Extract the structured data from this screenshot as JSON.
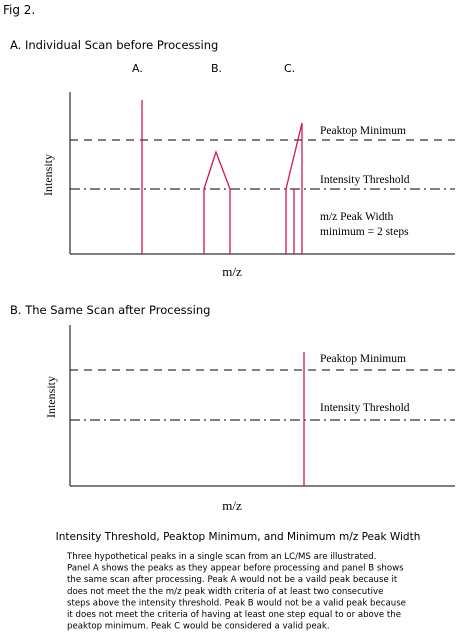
{
  "header": {
    "fig": "Fig  2."
  },
  "panel_a": {
    "title": "A.  Individual  Scan  before  Processing",
    "peak_labels": [
      "A.",
      "B.",
      "C."
    ],
    "y_axis": "Intensity",
    "x_axis": "m/z",
    "peaktop": "Peaktop Minimum",
    "threshold": "Intensity Threshold",
    "width_note": [
      "m/z Peak Width",
      "minimum = 2 steps"
    ]
  },
  "panel_b": {
    "title": "B.  The  Same  Scan  after  Processing",
    "y_axis": "Intensity",
    "x_axis": "m/z",
    "peaktop": "Peaktop Minimum",
    "threshold": "Intensity Threshold"
  },
  "caption": {
    "title": "Intensity Threshold, Peaktop Minimum, and Minimum m/z Peak Width",
    "lines": [
      "Three hypothetical peaks in a single scan from an LC/MS are illustrated.",
      "Panel A shows the peaks as they appear before processing and panel B shows",
      "the same scan after processing.  Peak A would not be a vaild peak because it",
      "does not meet the the m/z peak width criteria of at least two consecutive",
      "steps above the intensity threshold.  Peak B would not be a valid peak because",
      "it does not meet the criteria of having at least one step equal to or above the",
      "peaktop minimum.  Peak C would be considered a valid peak."
    ]
  }
}
